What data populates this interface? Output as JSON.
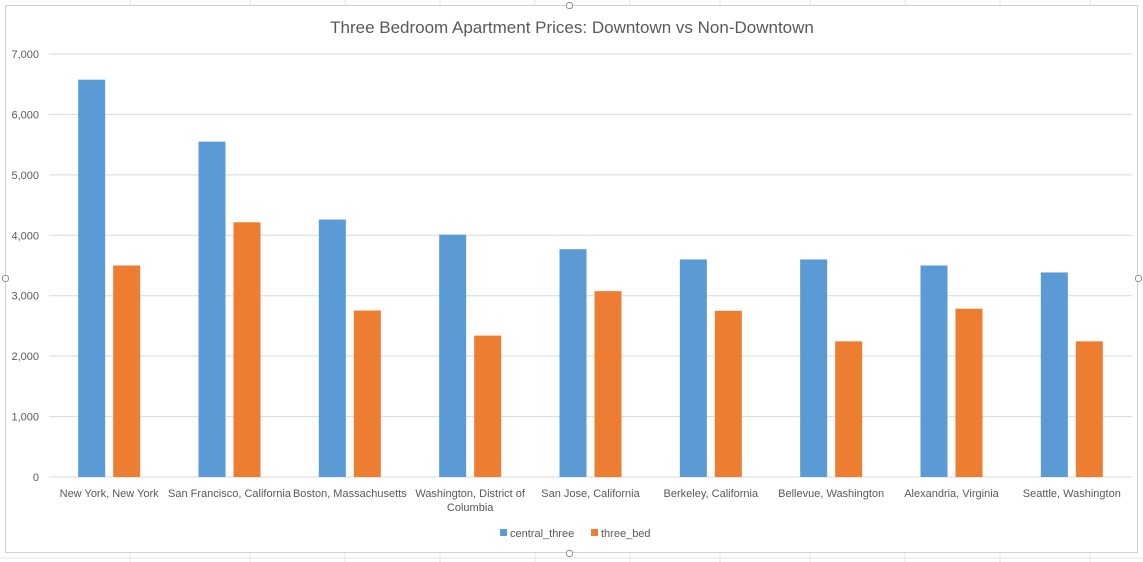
{
  "chart_data": {
    "type": "bar",
    "title": "Three Bedroom Apartment Prices: Downtown vs Non-Downtown",
    "xlabel": "",
    "ylabel": "",
    "categories": [
      [
        "New York, New York"
      ],
      [
        "San Francisco, California"
      ],
      [
        "Boston, Massachusetts"
      ],
      [
        "Washington, District of",
        "Columbia"
      ],
      [
        "San Jose, California"
      ],
      [
        "Berkeley, California"
      ],
      [
        "Bellevue, Washington"
      ],
      [
        "Alexandria, Virginia"
      ],
      [
        "Seattle, Washington"
      ]
    ],
    "series": [
      {
        "name": "central_three",
        "color": "#5B9BD5",
        "values": [
          6575,
          5550,
          4260,
          4010,
          3770,
          3600,
          3600,
          3500,
          3385
        ]
      },
      {
        "name": "three_bed",
        "color": "#ED7D31",
        "values": [
          3500,
          4215,
          2755,
          2340,
          3075,
          2750,
          2245,
          2785,
          2245
        ]
      }
    ],
    "ylim": [
      0,
      7000
    ],
    "yticks": [
      "0",
      "1,000",
      "2,000",
      "3,000",
      "4,000",
      "5,000",
      "6,000",
      "7,000"
    ],
    "grid": true,
    "legend_position": "bottom"
  }
}
